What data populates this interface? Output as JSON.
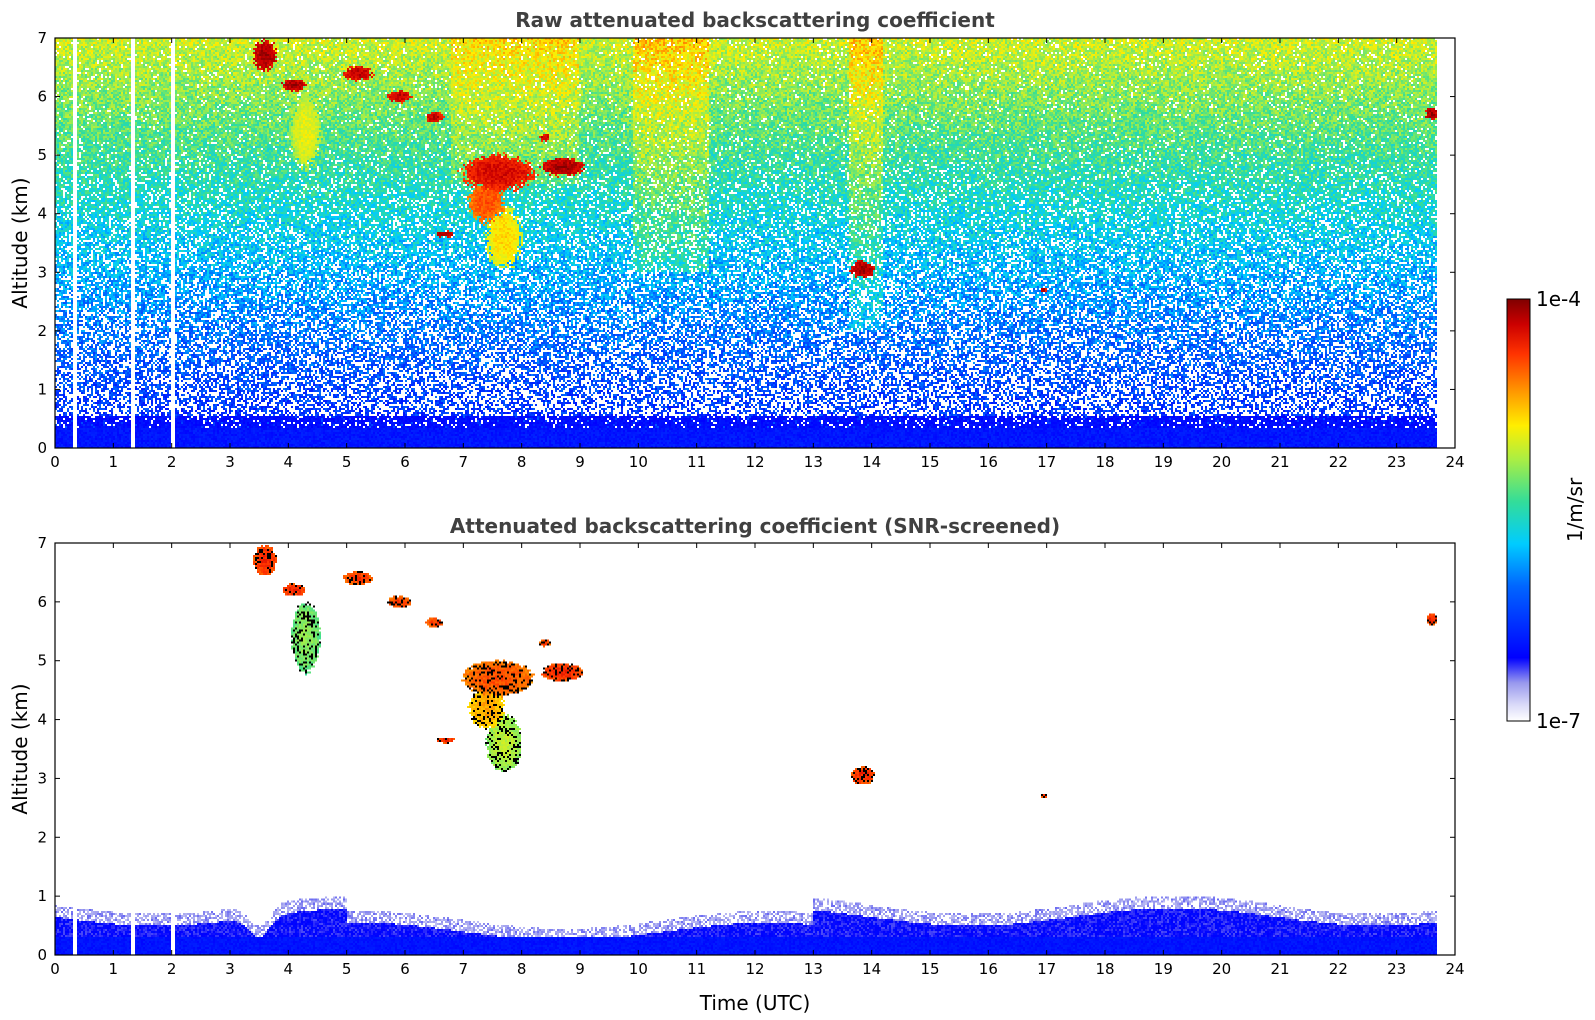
{
  "chart_data": [
    {
      "type": "heatmap",
      "title": "Raw attenuated backscattering coefficient",
      "xlabel": "",
      "ylabel": "Altitude (km)",
      "xlim": [
        0,
        24
      ],
      "ylim": [
        0,
        7
      ],
      "xticks": [
        0,
        1,
        2,
        3,
        4,
        5,
        6,
        7,
        8,
        9,
        10,
        11,
        12,
        13,
        14,
        15,
        16,
        17,
        18,
        19,
        20,
        21,
        22,
        23,
        24
      ],
      "yticks": [
        0,
        1,
        2,
        3,
        4,
        5,
        6,
        7
      ],
      "data_end_hour": 23.7,
      "gaps_hours": [
        0.33,
        1.33,
        2.03
      ],
      "cloud_features": [
        {
          "t": 3.6,
          "z": 6.7,
          "dt": 0.2,
          "dz": 0.25,
          "level": 0.97
        },
        {
          "t": 4.1,
          "z": 6.2,
          "dt": 0.2,
          "dz": 0.1,
          "level": 0.97
        },
        {
          "t": 5.2,
          "z": 6.4,
          "dt": 0.25,
          "dz": 0.12,
          "level": 0.95
        },
        {
          "t": 5.9,
          "z": 6.0,
          "dt": 0.2,
          "dz": 0.1,
          "level": 0.95
        },
        {
          "t": 6.5,
          "z": 5.65,
          "dt": 0.15,
          "dz": 0.08,
          "level": 0.95
        },
        {
          "t": 7.6,
          "z": 4.7,
          "dt": 0.6,
          "dz": 0.3,
          "level": 0.93
        },
        {
          "t": 8.7,
          "z": 4.8,
          "dt": 0.35,
          "dz": 0.15,
          "level": 0.97
        },
        {
          "t": 8.4,
          "z": 5.3,
          "dt": 0.1,
          "dz": 0.06,
          "level": 0.95
        },
        {
          "t": 7.4,
          "z": 4.2,
          "dt": 0.3,
          "dz": 0.35,
          "level": 0.85
        },
        {
          "t": 7.7,
          "z": 3.6,
          "dt": 0.3,
          "dz": 0.5,
          "level": 0.72
        },
        {
          "t": 4.3,
          "z": 5.4,
          "dt": 0.25,
          "dz": 0.6,
          "level": 0.68
        },
        {
          "t": 6.7,
          "z": 3.65,
          "dt": 0.15,
          "dz": 0.05,
          "level": 0.97
        },
        {
          "t": 13.85,
          "z": 3.05,
          "dt": 0.2,
          "dz": 0.15,
          "level": 0.97
        },
        {
          "t": 16.95,
          "z": 2.7,
          "dt": 0.05,
          "dz": 0.05,
          "level": 0.95
        },
        {
          "t": 23.6,
          "z": 5.7,
          "dt": 0.1,
          "dz": 0.1,
          "level": 0.97
        }
      ]
    },
    {
      "type": "heatmap",
      "title": "Attenuated backscattering coefficient (SNR-screened)",
      "xlabel": "Time (UTC)",
      "ylabel": "Altitude (km)",
      "xlim": [
        0,
        24
      ],
      "ylim": [
        0,
        7
      ],
      "xticks": [
        0,
        1,
        2,
        3,
        4,
        5,
        6,
        7,
        8,
        9,
        10,
        11,
        12,
        13,
        14,
        15,
        16,
        17,
        18,
        19,
        20,
        21,
        22,
        23,
        24
      ],
      "yticks": [
        0,
        1,
        2,
        3,
        4,
        5,
        6,
        7
      ],
      "boundary_layer_top_km": 0.85
    }
  ],
  "colorbar": {
    "label": "1/m/sr",
    "max_label": "1e-4",
    "min_label": "1e-7",
    "stops": [
      "#ffffff",
      "#d8d8f8",
      "#9999ee",
      "#0000ff",
      "#0066ff",
      "#00ccff",
      "#33dd99",
      "#aaee44",
      "#ffee00",
      "#ff9900",
      "#ff3300",
      "#cc0000",
      "#800000"
    ]
  }
}
